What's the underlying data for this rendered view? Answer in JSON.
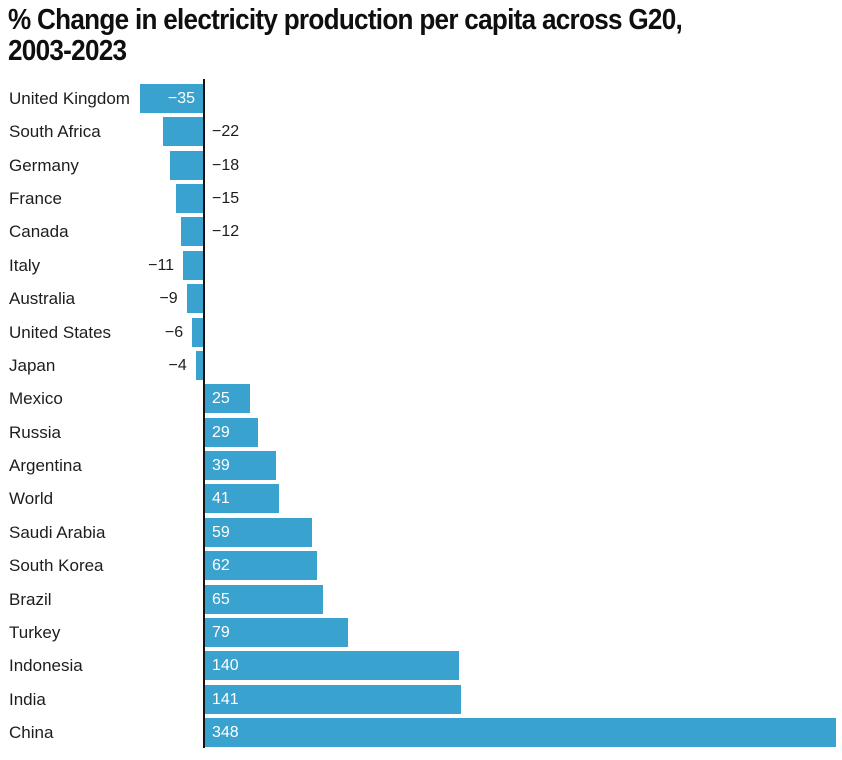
{
  "header": {
    "lines": [
      "% Change in electricity production per capita across G20,",
      "2003-2023"
    ]
  },
  "chart_data": {
    "type": "bar",
    "orientation": "horizontal",
    "title": "% Change in electricity production per capita across G20, 2003-2023",
    "xlabel": "",
    "ylabel": "",
    "xlim": [
      -35,
      348
    ],
    "grid": false,
    "legend": "none",
    "categories": [
      "United Kingdom",
      "South Africa",
      "Germany",
      "France",
      "Canada",
      "Italy",
      "Australia",
      "United States",
      "Japan",
      "Mexico",
      "Russia",
      "Argentina",
      "World",
      "Saudi Arabia",
      "South Korea",
      "Brazil",
      "Turkey",
      "Indonesia",
      "India",
      "China"
    ],
    "values": [
      -35,
      -22,
      -18,
      -15,
      -12,
      -11,
      -9,
      -6,
      -4,
      25,
      29,
      39,
      41,
      59,
      62,
      65,
      79,
      140,
      141,
      348
    ],
    "value_labels": [
      "−35",
      "−22",
      "−18",
      "−15",
      "−12",
      "−11",
      "−9",
      "−6",
      "−4",
      "25",
      "29",
      "39",
      "41",
      "59",
      "62",
      "65",
      "79",
      "140",
      "141",
      "348"
    ],
    "value_label_placements": [
      "inside",
      "axis-right",
      "axis-right",
      "axis-right",
      "axis-right",
      "bar-left",
      "bar-left",
      "bar-left",
      "bar-left",
      "inside",
      "inside",
      "inside",
      "inside",
      "inside",
      "inside",
      "inside",
      "inside",
      "inside",
      "inside",
      "inside"
    ],
    "colors": {
      "bar_fill": "#3aa2ce",
      "inside_value_text": "#ffffff",
      "outside_value_text": "#1d1d1d",
      "category_text": "#1d1d1d",
      "axis_line": "#131313",
      "title_text": "#0f0f0f",
      "background": "#ffffff"
    }
  }
}
